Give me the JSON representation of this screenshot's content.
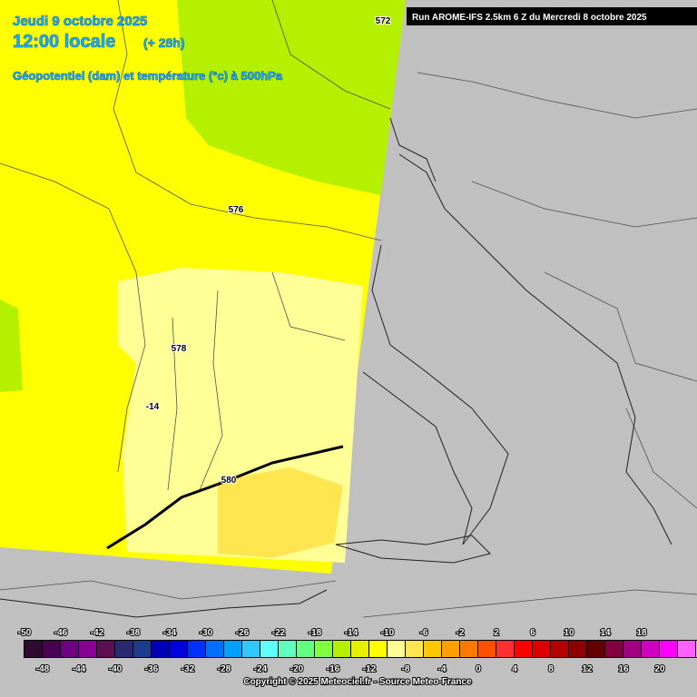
{
  "header": {
    "date": "Jeudi 9 octobre 2025",
    "time": "12:00 locale",
    "lead": "(+ 28h)",
    "parameter": "Géopotentiel (dam) et température (°c) à 500hPa",
    "run": "Run AROME-IFS 2.5km 6 Z du Mercredi 8 octobre 2025"
  },
  "contour_labels": [
    "572",
    "576",
    "578",
    "580",
    "-14"
  ],
  "legend": {
    "values": [
      -50,
      -48,
      -46,
      -44,
      -42,
      -40,
      -38,
      -36,
      -34,
      -32,
      -30,
      -28,
      -26,
      -24,
      -22,
      -20,
      -18,
      -16,
      -14,
      -12,
      -10,
      -8,
      -6,
      -4,
      -2,
      0,
      2,
      4,
      6,
      8,
      10,
      12,
      14,
      16,
      18,
      20
    ],
    "colors": [
      "#2e0a2e",
      "#4a0050",
      "#6e0082",
      "#880094",
      "#5a1050",
      "#2a2a6e",
      "#1e3a8a",
      "#0000b4",
      "#0000dc",
      "#0030ff",
      "#0070ff",
      "#00a0ff",
      "#30c8ff",
      "#60ffff",
      "#60ffc0",
      "#60ff80",
      "#80ff40",
      "#b4f000",
      "#e6f000",
      "#ffff00",
      "#ffff96",
      "#ffe650",
      "#ffc800",
      "#ffa000",
      "#ff7800",
      "#ff5000",
      "#ff3030",
      "#ff0000",
      "#dc0000",
      "#b40000",
      "#8c0000",
      "#640000",
      "#800040",
      "#a00080",
      "#d000c0",
      "#ff00ff",
      "#ff60ff",
      "#ff90ff"
    ]
  },
  "footer": "Copyright © 2025 Meteociel.fr - Source Meteo-France"
}
